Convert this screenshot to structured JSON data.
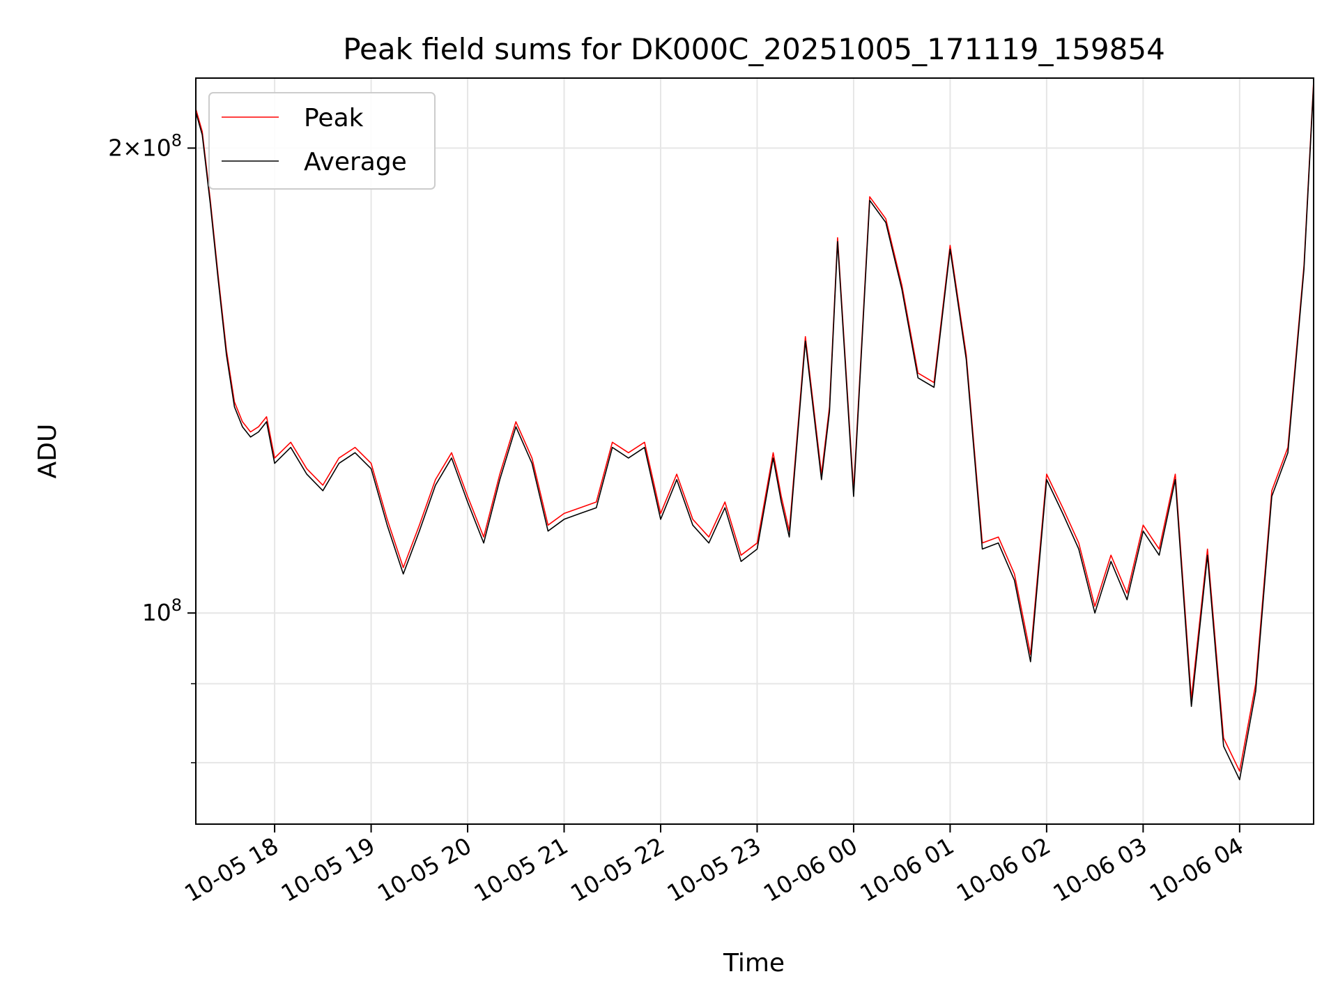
{
  "chart_data": {
    "type": "line",
    "title": "Peak field sums for DK000C_20251005_171119_159854",
    "xlabel": "Time",
    "ylabel": "ADU",
    "yscale": "log",
    "ylim": [
      73000000,
      222000000
    ],
    "xlim": [
      "2025-10-05 17:11",
      "2025-10-06 04:46"
    ],
    "grid": true,
    "legend": "top-left",
    "x_ticks": [
      "2025-10-05 18:00",
      "2025-10-05 19:00",
      "2025-10-05 20:00",
      "2025-10-05 21:00",
      "2025-10-05 22:00",
      "2025-10-05 23:00",
      "2025-10-06 00:00",
      "2025-10-06 01:00",
      "2025-10-06 02:00",
      "2025-10-06 03:00",
      "2025-10-06 04:00"
    ],
    "x_tick_labels": [
      "10-05 18",
      "10-05 19",
      "10-05 20",
      "10-05 21",
      "10-05 22",
      "10-05 23",
      "10-06 00",
      "10-06 01",
      "10-06 02",
      "10-06 03",
      "10-06 04"
    ],
    "y_ticks": [
      {
        "value": 100000000,
        "mantissa": "",
        "exponent": "8",
        "base": "10"
      },
      {
        "value": 200000000,
        "mantissa": "2",
        "exponent": "8",
        "base": "10"
      }
    ],
    "y_minor_ticks": [
      80000000,
      90000000
    ],
    "x": [
      "2025-10-05 17:11",
      "2025-10-05 17:15",
      "2025-10-05 17:20",
      "2025-10-05 17:25",
      "2025-10-05 17:30",
      "2025-10-05 17:35",
      "2025-10-05 17:40",
      "2025-10-05 17:45",
      "2025-10-05 17:50",
      "2025-10-05 17:55",
      "2025-10-05 18:00",
      "2025-10-05 18:10",
      "2025-10-05 18:20",
      "2025-10-05 18:30",
      "2025-10-05 18:40",
      "2025-10-05 18:50",
      "2025-10-05 19:00",
      "2025-10-05 19:10",
      "2025-10-05 19:20",
      "2025-10-05 19:30",
      "2025-10-05 19:40",
      "2025-10-05 19:50",
      "2025-10-05 20:00",
      "2025-10-05 20:10",
      "2025-10-05 20:20",
      "2025-10-05 20:30",
      "2025-10-05 20:40",
      "2025-10-05 20:50",
      "2025-10-05 21:00",
      "2025-10-05 21:10",
      "2025-10-05 21:20",
      "2025-10-05 21:30",
      "2025-10-05 21:40",
      "2025-10-05 21:50",
      "2025-10-05 22:00",
      "2025-10-05 22:10",
      "2025-10-05 22:20",
      "2025-10-05 22:30",
      "2025-10-05 22:40",
      "2025-10-05 22:50",
      "2025-10-05 23:00",
      "2025-10-05 23:10",
      "2025-10-05 23:15",
      "2025-10-05 23:20",
      "2025-10-05 23:30",
      "2025-10-05 23:40",
      "2025-10-05 23:45",
      "2025-10-05 23:50",
      "2025-10-06 00:00",
      "2025-10-06 00:10",
      "2025-10-06 00:20",
      "2025-10-06 00:30",
      "2025-10-06 00:40",
      "2025-10-06 00:50",
      "2025-10-06 01:00",
      "2025-10-06 01:10",
      "2025-10-06 01:20",
      "2025-10-06 01:30",
      "2025-10-06 01:40",
      "2025-10-06 01:50",
      "2025-10-06 02:00",
      "2025-10-06 02:10",
      "2025-10-06 02:20",
      "2025-10-06 02:30",
      "2025-10-06 02:40",
      "2025-10-06 02:50",
      "2025-10-06 03:00",
      "2025-10-06 03:10",
      "2025-10-06 03:20",
      "2025-10-06 03:30",
      "2025-10-06 03:40",
      "2025-10-06 03:50",
      "2025-10-06 04:00",
      "2025-10-06 04:10",
      "2025-10-06 04:20",
      "2025-10-06 04:30",
      "2025-10-06 04:40",
      "2025-10-06 04:46"
    ],
    "series": [
      {
        "name": "Peak",
        "color": "#ff0000",
        "values": [
          212000000,
          205000000,
          185000000,
          165000000,
          148000000,
          137000000,
          133000000,
          131000000,
          132000000,
          134000000,
          126000000,
          129000000,
          124000000,
          121000000,
          126000000,
          128000000,
          125000000,
          115000000,
          107000000,
          114000000,
          122000000,
          127000000,
          119000000,
          112000000,
          123000000,
          133000000,
          126000000,
          114000000,
          116000000,
          117000000,
          118000000,
          129000000,
          127000000,
          129000000,
          116000000,
          123000000,
          115000000,
          112000000,
          118000000,
          109000000,
          111000000,
          127000000,
          119000000,
          113000000,
          151000000,
          123000000,
          136000000,
          175000000,
          120000000,
          186000000,
          180000000,
          163000000,
          143000000,
          141000000,
          173000000,
          147000000,
          111000000,
          112000000,
          106000000,
          94000000,
          123000000,
          117000000,
          111000000,
          101000000,
          109000000,
          103000000,
          114000000,
          110000000,
          123000000,
          88000000,
          110000000,
          83000000,
          79000000,
          90000000,
          120000000,
          128000000,
          168000000,
          221000000
        ]
      },
      {
        "name": "Average",
        "color": "#000000",
        "values": [
          211000000,
          204000000,
          184000000,
          164000000,
          147000000,
          136000000,
          132000000,
          130000000,
          131000000,
          133000000,
          125000000,
          128000000,
          123000000,
          120000000,
          125000000,
          127000000,
          124000000,
          114000000,
          106000000,
          113000000,
          121000000,
          126000000,
          118000000,
          111000000,
          122000000,
          132000000,
          125000000,
          113000000,
          115000000,
          116000000,
          117000000,
          128000000,
          126000000,
          128000000,
          115000000,
          122000000,
          114000000,
          111000000,
          117000000,
          108000000,
          110000000,
          126000000,
          118000000,
          112000000,
          150000000,
          122000000,
          135000000,
          174000000,
          119000000,
          185000000,
          179000000,
          162000000,
          142000000,
          140000000,
          172000000,
          146000000,
          110000000,
          111000000,
          105000000,
          93000000,
          122000000,
          116000000,
          110000000,
          100000000,
          108000000,
          102000000,
          113000000,
          109000000,
          122000000,
          87000000,
          109000000,
          82000000,
          78000000,
          89000000,
          119000000,
          127000000,
          167000000,
          220000000
        ]
      }
    ]
  }
}
